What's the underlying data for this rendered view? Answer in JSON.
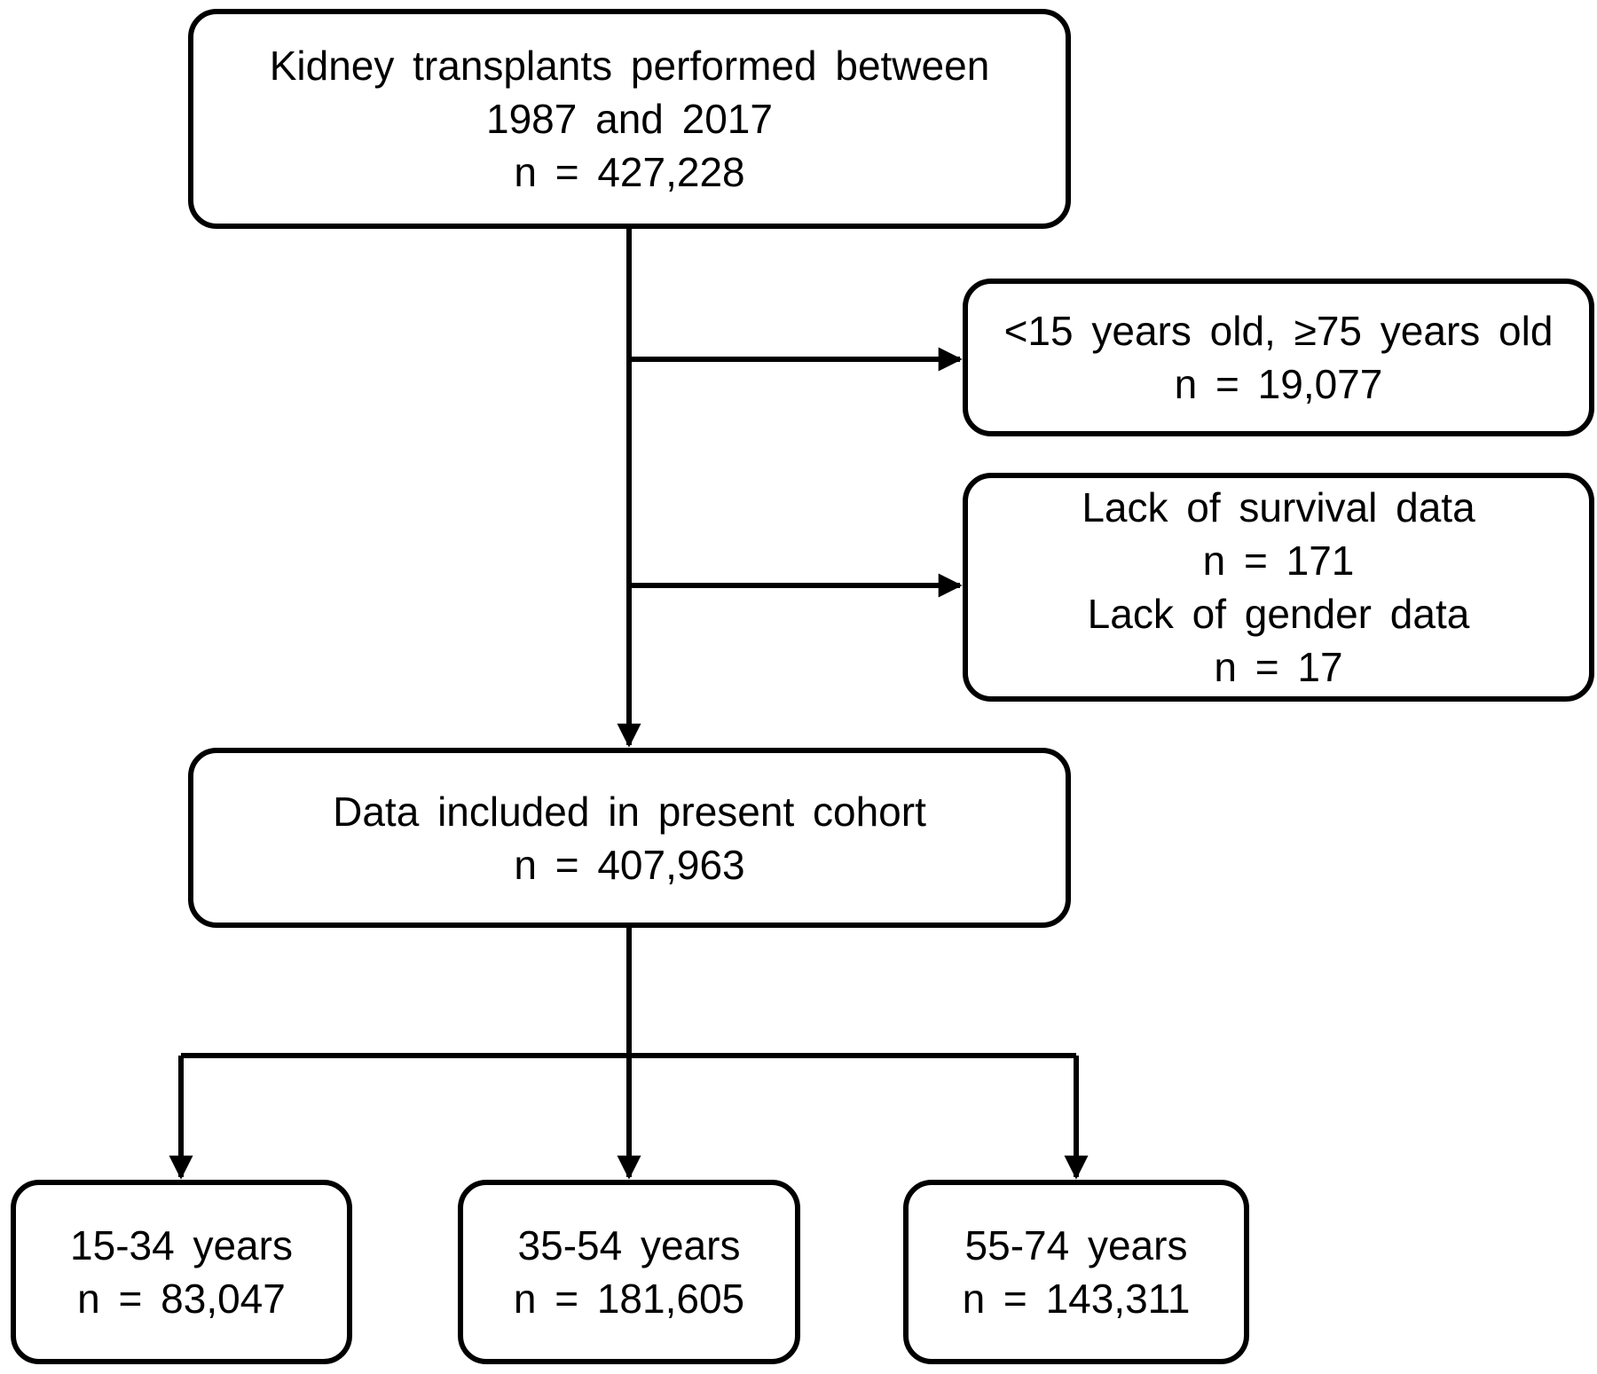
{
  "boxes": {
    "total": {
      "lines": [
        "Kidney transplants performed between",
        "1987 and 2017",
        "n = 427,228"
      ]
    },
    "exclusion_age": {
      "lines": [
        "<15 years old, ≥75 years old",
        "n = 19,077"
      ]
    },
    "exclusion_data": {
      "lines": [
        "Lack of survival data",
        "n = 171",
        "Lack of gender data",
        "n = 17"
      ]
    },
    "included": {
      "lines": [
        "Data included in present cohort",
        "n = 407,963"
      ]
    },
    "group_15_34": {
      "lines": [
        "15-34 years",
        "n = 83,047"
      ]
    },
    "group_35_54": {
      "lines": [
        "35-54 years",
        "n = 181,605"
      ]
    },
    "group_55_74": {
      "lines": [
        "55-74 years",
        "n = 143,311"
      ]
    }
  },
  "colors": {
    "stroke": "#000000",
    "background": "#ffffff"
  }
}
